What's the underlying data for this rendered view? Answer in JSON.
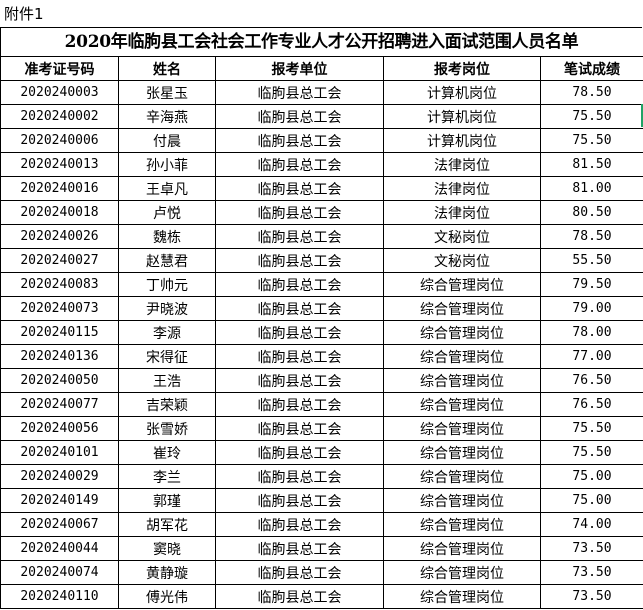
{
  "attachment_label": "附件1",
  "title": "2020年临朐县工会社会工作专业人才公开招聘进入面试范围人员名单",
  "headers": [
    "准考证号码",
    "姓名",
    "报考单位",
    "报考岗位",
    "笔试成绩"
  ],
  "rows": [
    [
      "2020240003",
      "张星玉",
      "临朐县总工会",
      "计算机岗位",
      "78.50"
    ],
    [
      "2020240002",
      "辛海燕",
      "临朐县总工会",
      "计算机岗位",
      "75.50"
    ],
    [
      "2020240006",
      "付晨",
      "临朐县总工会",
      "计算机岗位",
      "75.50"
    ],
    [
      "2020240013",
      "孙小菲",
      "临朐县总工会",
      "法律岗位",
      "81.50"
    ],
    [
      "2020240016",
      "王卓凡",
      "临朐县总工会",
      "法律岗位",
      "81.00"
    ],
    [
      "2020240018",
      "卢悦",
      "临朐县总工会",
      "法律岗位",
      "80.50"
    ],
    [
      "2020240026",
      "魏栋",
      "临朐县总工会",
      "文秘岗位",
      "78.50"
    ],
    [
      "2020240027",
      "赵慧君",
      "临朐县总工会",
      "文秘岗位",
      "55.50"
    ],
    [
      "2020240083",
      "丁帅元",
      "临朐县总工会",
      "综合管理岗位",
      "79.50"
    ],
    [
      "2020240073",
      "尹晓波",
      "临朐县总工会",
      "综合管理岗位",
      "79.00"
    ],
    [
      "2020240115",
      "李源",
      "临朐县总工会",
      "综合管理岗位",
      "78.00"
    ],
    [
      "2020240136",
      "宋得征",
      "临朐县总工会",
      "综合管理岗位",
      "77.00"
    ],
    [
      "2020240050",
      "王浩",
      "临朐县总工会",
      "综合管理岗位",
      "76.50"
    ],
    [
      "2020240077",
      "吉荣颖",
      "临朐县总工会",
      "综合管理岗位",
      "76.50"
    ],
    [
      "2020240056",
      "张雪娇",
      "临朐县总工会",
      "综合管理岗位",
      "75.50"
    ],
    [
      "2020240101",
      "崔玲",
      "临朐县总工会",
      "综合管理岗位",
      "75.50"
    ],
    [
      "2020240029",
      "李兰",
      "临朐县总工会",
      "综合管理岗位",
      "75.00"
    ],
    [
      "2020240149",
      "郭瑾",
      "临朐县总工会",
      "综合管理岗位",
      "75.00"
    ],
    [
      "2020240067",
      "胡军花",
      "临朐县总工会",
      "综合管理岗位",
      "74.00"
    ],
    [
      "2020240044",
      "窦晓",
      "临朐县总工会",
      "综合管理岗位",
      "73.50"
    ],
    [
      "2020240074",
      "黄静璇",
      "临朐县总工会",
      "综合管理岗位",
      "73.50"
    ],
    [
      "2020240110",
      "傅光伟",
      "临朐县总工会",
      "综合管理岗位",
      "73.50"
    ]
  ]
}
